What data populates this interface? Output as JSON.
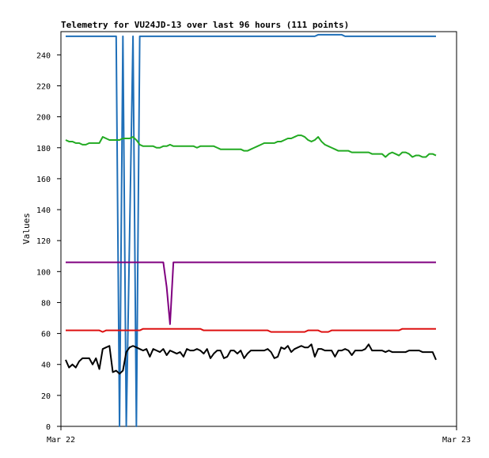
{
  "chart_data": {
    "type": "line",
    "title": "Telemetry for VU24JD-13 over last 96 hours (111 points)",
    "ylabel": "Values",
    "xlabel": "",
    "ylim": [
      0,
      255
    ],
    "yticks": [
      0,
      20,
      40,
      60,
      80,
      100,
      120,
      140,
      160,
      180,
      200,
      220,
      240
    ],
    "x_tick_labels": [
      "Mar 22",
      "Mar 23"
    ],
    "grid": false,
    "legend": "none",
    "n_points": 111,
    "series": [
      {
        "color": "#1f6fb8",
        "values": [
          252,
          252,
          252,
          252,
          252,
          252,
          252,
          252,
          252,
          252,
          252,
          252,
          252,
          252,
          252,
          252,
          0,
          252,
          0,
          125,
          252,
          0,
          252,
          252,
          252,
          252,
          252,
          252,
          252,
          252,
          252,
          252,
          252,
          252,
          252,
          252,
          252,
          252,
          252,
          252,
          252,
          252,
          252,
          252,
          252,
          252,
          252,
          252,
          252,
          252,
          252,
          252,
          252,
          252,
          252,
          252,
          252,
          252,
          252,
          252,
          252,
          252,
          252,
          252,
          252,
          252,
          252,
          252,
          252,
          252,
          252,
          252,
          252,
          252,
          252,
          253,
          253,
          253,
          253,
          253,
          253,
          253,
          253,
          252,
          252,
          252,
          252,
          252,
          252,
          252,
          252,
          252,
          252,
          252,
          252,
          252,
          252,
          252,
          252,
          252,
          252,
          252,
          252,
          252,
          252,
          252,
          252,
          252,
          252,
          252,
          252
        ]
      },
      {
        "color": "#22aa22",
        "values": [
          185,
          184,
          184,
          183,
          183,
          182,
          182,
          183,
          183,
          183,
          183,
          187,
          186,
          185,
          185,
          185,
          185,
          186,
          186,
          186,
          187,
          185,
          182,
          181,
          181,
          181,
          181,
          180,
          180,
          181,
          181,
          182,
          181,
          181,
          181,
          181,
          181,
          181,
          181,
          180,
          181,
          181,
          181,
          181,
          181,
          180,
          179,
          179,
          179,
          179,
          179,
          179,
          179,
          178,
          178,
          179,
          180,
          181,
          182,
          183,
          183,
          183,
          183,
          184,
          184,
          185,
          186,
          186,
          187,
          188,
          188,
          187,
          185,
          184,
          185,
          187,
          184,
          182,
          181,
          180,
          179,
          178,
          178,
          178,
          178,
          177,
          177,
          177,
          177,
          177,
          177,
          176,
          176,
          176,
          176,
          174,
          176,
          177,
          176,
          175,
          177,
          177,
          176,
          174,
          175,
          175,
          174,
          174,
          176,
          176,
          175
        ]
      },
      {
        "color": "#800080",
        "values": [
          106,
          106,
          106,
          106,
          106,
          106,
          106,
          106,
          106,
          106,
          106,
          106,
          106,
          106,
          106,
          106,
          106,
          106,
          106,
          106,
          106,
          106,
          106,
          106,
          106,
          106,
          106,
          106,
          106,
          106,
          90,
          66,
          106,
          106,
          106,
          106,
          106,
          106,
          106,
          106,
          106,
          106,
          106,
          106,
          106,
          106,
          106,
          106,
          106,
          106,
          106,
          106,
          106,
          106,
          106,
          106,
          106,
          106,
          106,
          106,
          106,
          106,
          106,
          106,
          106,
          106,
          106,
          106,
          106,
          106,
          106,
          106,
          106,
          106,
          106,
          106,
          106,
          106,
          106,
          106,
          106,
          106,
          106,
          106,
          106,
          106,
          106,
          106,
          106,
          106,
          106,
          106,
          106,
          106,
          106,
          106,
          106,
          106,
          106,
          106,
          106,
          106,
          106,
          106,
          106,
          106,
          106,
          106,
          106,
          106,
          106
        ]
      },
      {
        "color": "#dd1111",
        "values": [
          62,
          62,
          62,
          62,
          62,
          62,
          62,
          62,
          62,
          62,
          62,
          61,
          62,
          62,
          62,
          62,
          62,
          62,
          62,
          62,
          62,
          62,
          62,
          63,
          63,
          63,
          63,
          63,
          63,
          63,
          63,
          63,
          63,
          63,
          63,
          63,
          63,
          63,
          63,
          63,
          63,
          62,
          62,
          62,
          62,
          62,
          62,
          62,
          62,
          62,
          62,
          62,
          62,
          62,
          62,
          62,
          62,
          62,
          62,
          62,
          62,
          61,
          61,
          61,
          61,
          61,
          61,
          61,
          61,
          61,
          61,
          61,
          62,
          62,
          62,
          62,
          61,
          61,
          61,
          62,
          62,
          62,
          62,
          62,
          62,
          62,
          62,
          62,
          62,
          62,
          62,
          62,
          62,
          62,
          62,
          62,
          62,
          62,
          62,
          62,
          63,
          63,
          63,
          63,
          63,
          63,
          63,
          63,
          63,
          63,
          63
        ]
      },
      {
        "color": "#000000",
        "values": [
          43,
          38,
          40,
          38,
          42,
          44,
          44,
          44,
          40,
          44,
          37,
          50,
          51,
          52,
          35,
          36,
          34,
          36,
          48,
          51,
          52,
          51,
          50,
          49,
          50,
          45,
          50,
          49,
          48,
          50,
          46,
          49,
          48,
          47,
          48,
          45,
          50,
          49,
          49,
          50,
          49,
          47,
          50,
          44,
          47,
          49,
          49,
          44,
          45,
          49,
          49,
          47,
          49,
          44,
          47,
          49,
          49,
          49,
          49,
          49,
          50,
          48,
          44,
          45,
          51,
          50,
          52,
          48,
          50,
          51,
          52,
          51,
          51,
          53,
          45,
          50,
          50,
          49,
          49,
          49,
          45,
          49,
          49,
          50,
          49,
          46,
          49,
          49,
          49,
          50,
          53,
          49,
          49,
          49,
          49,
          48,
          49,
          48,
          48,
          48,
          48,
          48,
          49,
          49,
          49,
          49,
          48,
          48,
          48,
          48,
          43
        ]
      }
    ]
  }
}
